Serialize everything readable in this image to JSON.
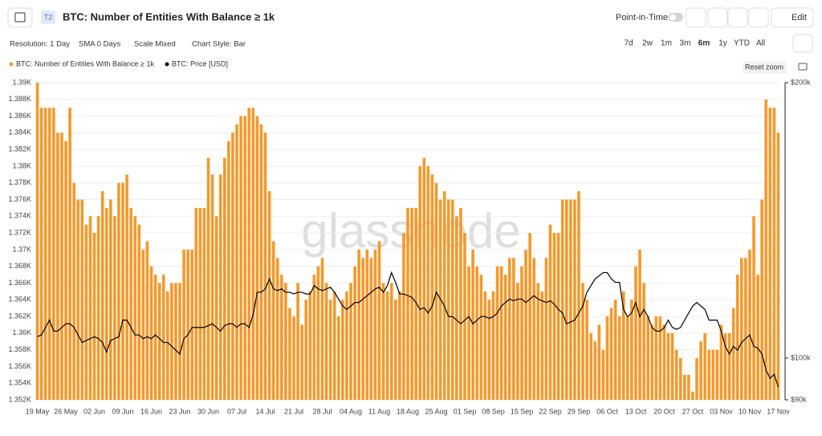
{
  "header": {
    "badge": "T2",
    "title": "BTC: Number of Entities With Balance ≥ 1k",
    "point_in_time": "Point-in-Time",
    "edit": "Edit"
  },
  "controls": {
    "resolution": "Resolution: 1 Day",
    "sma": "SMA 0 Days",
    "scale": "Scale Mixed",
    "style": "Chart Style: Bar",
    "ranges": [
      "7d",
      "2w",
      "1m",
      "3m",
      "6m",
      "1y",
      "YTD",
      "All"
    ],
    "reset_zoom": "Reset zoom"
  },
  "chart_data": {
    "type": "bar",
    "watermark": "glassnode",
    "legend": "top-left",
    "grid": true,
    "y2_log": true,
    "categories": [
      "19 May",
      null,
      null,
      null,
      null,
      null,
      null,
      "26 May",
      null,
      null,
      null,
      null,
      null,
      null,
      "02 Jun",
      null,
      null,
      null,
      null,
      null,
      null,
      "09 Jun",
      null,
      null,
      null,
      null,
      null,
      null,
      "16 Jun",
      null,
      null,
      null,
      null,
      null,
      null,
      "23 Jun",
      null,
      null,
      null,
      null,
      null,
      null,
      "30 Jun",
      null,
      null,
      null,
      null,
      null,
      null,
      "07 Jul",
      null,
      null,
      null,
      null,
      null,
      null,
      "14 Jul",
      null,
      null,
      null,
      null,
      null,
      null,
      "21 Jul",
      null,
      null,
      null,
      null,
      null,
      null,
      "28 Jul",
      null,
      null,
      null,
      null,
      null,
      null,
      "04 Aug",
      null,
      null,
      null,
      null,
      null,
      null,
      "11 Aug",
      null,
      null,
      null,
      null,
      null,
      null,
      "18 Aug",
      null,
      null,
      null,
      null,
      null,
      null,
      "25 Aug",
      null,
      null,
      null,
      null,
      null,
      null,
      "01 Sep",
      null,
      null,
      null,
      null,
      null,
      null,
      "08 Sep",
      null,
      null,
      null,
      null,
      null,
      null,
      "15 Sep",
      null,
      null,
      null,
      null,
      null,
      null,
      "22 Sep",
      null,
      null,
      null,
      null,
      null,
      null,
      "29 Sep",
      null,
      null,
      null,
      null,
      null,
      null,
      "06 Oct",
      null,
      null,
      null,
      null,
      null,
      null,
      "13 Oct",
      null,
      null,
      null,
      null,
      null,
      null,
      "20 Oct",
      null,
      null,
      null,
      null,
      null,
      null,
      "27 Oct",
      null,
      null,
      null,
      null,
      null,
      null,
      "03 Nov",
      null,
      null,
      null,
      null,
      null,
      null,
      "10 Nov",
      null,
      null,
      null,
      null,
      null,
      null,
      "17 Nov"
    ],
    "ylim": [
      1352,
      1390
    ],
    "yticks": [
      {
        "value": 1352,
        "label": "1.352K"
      },
      {
        "value": 1354,
        "label": "1.354K"
      },
      {
        "value": 1356,
        "label": "1.356K"
      },
      {
        "value": 1358,
        "label": "1.358K"
      },
      {
        "value": 1360,
        "label": "1.36K"
      },
      {
        "value": 1362,
        "label": "1.362K"
      },
      {
        "value": 1364,
        "label": "1.364K"
      },
      {
        "value": 1366,
        "label": "1.366K"
      },
      {
        "value": 1368,
        "label": "1.368K"
      },
      {
        "value": 1370,
        "label": "1.37K"
      },
      {
        "value": 1372,
        "label": "1.372K"
      },
      {
        "value": 1374,
        "label": "1.374K"
      },
      {
        "value": 1376,
        "label": "1.376K"
      },
      {
        "value": 1378,
        "label": "1.378K"
      },
      {
        "value": 1380,
        "label": "1.38K"
      },
      {
        "value": 1382,
        "label": "1.382K"
      },
      {
        "value": 1384,
        "label": "1.384K"
      },
      {
        "value": 1386,
        "label": "1.386K"
      },
      {
        "value": 1388,
        "label": "1.388K"
      },
      {
        "value": 1390,
        "label": "1.39K"
      }
    ],
    "y2lim": [
      90000,
      200000
    ],
    "y2ticks": [
      {
        "value": 90000,
        "label": "$90k"
      },
      {
        "value": 100000,
        "label": "$100k"
      },
      {
        "value": 200000,
        "label": "$200k"
      }
    ],
    "series": [
      {
        "name": "BTC: Number of Entities With Balance ≥ 1k",
        "color": "#f29a2e",
        "type": "bar",
        "values": [
          1390,
          1387,
          1387,
          1387,
          1387,
          1384,
          1384,
          1383,
          1387,
          1378,
          1376,
          1376,
          1373,
          1374,
          1372,
          1374,
          1377,
          1375,
          1376,
          1374,
          1378,
          1378,
          1379,
          1375,
          1374,
          1373,
          1370,
          1371,
          1368,
          1367,
          1366,
          1367,
          1365,
          1366,
          1366,
          1366,
          1370,
          1370,
          1370,
          1375,
          1375,
          1375,
          1381,
          1379,
          1374,
          1379,
          1381,
          1383,
          1384,
          1385,
          1386,
          1386,
          1387,
          1387,
          1386,
          1385,
          1384,
          1377,
          1371,
          1369,
          1367,
          1366,
          1363,
          1362,
          1366,
          1361,
          1364,
          1365,
          1367,
          1368,
          1369,
          1366,
          1364,
          1365,
          1362,
          1364,
          1365,
          1366,
          1368,
          1370,
          1369,
          1370,
          1369,
          1370,
          1371,
          1366,
          1365,
          1366,
          1364,
          1365,
          1372,
          1375,
          1375,
          1375,
          1380,
          1381,
          1380,
          1379,
          1378,
          1376,
          1377,
          1376,
          1376,
          1374,
          1375,
          1372,
          1368,
          1370,
          1368,
          1367,
          1365,
          1364,
          1365,
          1368,
          1368,
          1367,
          1369,
          1369,
          1366,
          1368,
          1370,
          1372,
          1369,
          1366,
          1365,
          1369,
          1373,
          1372,
          1372,
          1376,
          1376,
          1376,
          1376,
          1377,
          1366,
          1364,
          1360,
          1359,
          1361,
          1358,
          1362,
          1363,
          1364,
          1362,
          1365,
          1362,
          1364,
          1368,
          1370,
          1366,
          1362,
          1361,
          1362,
          1362,
          1361,
          1360,
          1360,
          1358,
          1357,
          1355,
          1355,
          1353,
          1357,
          1359,
          1360,
          1358,
          1358,
          1358,
          1361,
          1360,
          1360,
          1363,
          1367,
          1369,
          1369,
          1370,
          1374,
          1367,
          1376,
          1388,
          1387,
          1387,
          1384
        ]
      },
      {
        "name": "BTC: Price [USD]",
        "color": "#111111",
        "type": "line",
        "axis": "y2",
        "values": [
          105500,
          106000,
          108000,
          110000,
          107000,
          107000,
          108000,
          109000,
          109000,
          108000,
          106000,
          104000,
          104500,
          105000,
          105500,
          105000,
          104000,
          101500,
          104500,
          105000,
          105500,
          110000,
          110000,
          108000,
          106000,
          106000,
          105000,
          105500,
          105000,
          106000,
          105000,
          104000,
          104000,
          103000,
          102000,
          101000,
          105000,
          106000,
          108000,
          108000,
          108000,
          108000,
          108500,
          109000,
          108000,
          107000,
          108500,
          109000,
          109000,
          108000,
          109000,
          109000,
          108000,
          111500,
          118000,
          118000,
          119000,
          122000,
          119000,
          118500,
          119000,
          118000,
          118000,
          117500,
          118000,
          118000,
          117500,
          117500,
          120000,
          119000,
          118500,
          119000,
          119500,
          118000,
          116000,
          114000,
          113000,
          114000,
          115000,
          115000,
          116000,
          117000,
          118000,
          119000,
          119500,
          118000,
          120000,
          124000,
          121000,
          117500,
          117500,
          117000,
          116500,
          115000,
          113000,
          113500,
          112000,
          114000,
          118000,
          116000,
          114000,
          111000,
          111000,
          110000,
          109000,
          110000,
          111000,
          109000,
          110000,
          111000,
          111000,
          110500,
          111000,
          112000,
          114000,
          115000,
          116000,
          115500,
          116000,
          116000,
          115000,
          116000,
          117000,
          116000,
          115500,
          115000,
          115500,
          114500,
          113000,
          112000,
          109000,
          109500,
          110000,
          112000,
          114000,
          118000,
          120000,
          122000,
          123000,
          124000,
          124000,
          122000,
          121000,
          121000,
          113000,
          111000,
          112000,
          115000,
          111000,
          113000,
          111000,
          108000,
          107000,
          107000,
          108000,
          110000,
          108000,
          107500,
          108000,
          110000,
          112000,
          114000,
          115000,
          114000,
          113000,
          110000,
          110000,
          110000,
          107000,
          103000,
          101000,
          103000,
          102000,
          104000,
          105000,
          106000,
          103000,
          102500,
          101000,
          97000,
          95000,
          96000,
          93000
        ]
      }
    ]
  }
}
